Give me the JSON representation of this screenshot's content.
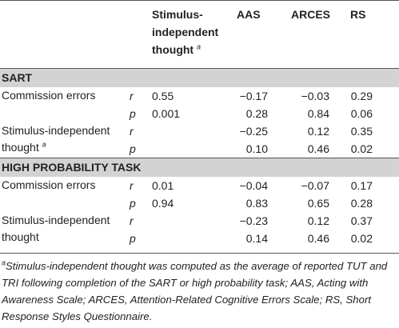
{
  "table": {
    "columns": [
      "Stimulus-independent thought",
      "AAS",
      "ARCES",
      "RS"
    ],
    "column_note": "a",
    "sections": [
      {
        "title": "SART",
        "groups": [
          {
            "label": "Commission errors",
            "lines": [
              {
                "stat": "r",
                "cells": [
                  "0.55",
                  "−0.17",
                  "−0.03",
                  "0.29"
                ]
              },
              {
                "stat": "p",
                "cells": [
                  "0.001",
                  "0.28",
                  "0.84",
                  "0.06"
                ]
              }
            ]
          },
          {
            "label": "Stimulus-independent thought",
            "label_note": "a",
            "lines": [
              {
                "stat": "r",
                "cells": [
                  null,
                  "−0.25",
                  "0.12",
                  "0.35"
                ]
              },
              {
                "stat": "p",
                "cells": [
                  null,
                  "0.10",
                  "0.46",
                  "0.02"
                ]
              }
            ]
          }
        ]
      },
      {
        "title": "HIGH PROBABILITY TASK",
        "groups": [
          {
            "label": "Commission errors",
            "lines": [
              {
                "stat": "r",
                "cells": [
                  "0.01",
                  "−0.04",
                  "−0.07",
                  "0.17"
                ]
              },
              {
                "stat": "p",
                "cells": [
                  "0.94",
                  "0.83",
                  "0.65",
                  "0.28"
                ]
              }
            ]
          },
          {
            "label": "Stimulus-independent thought",
            "lines": [
              {
                "stat": "r",
                "cells": [
                  null,
                  "−0.23",
                  "0.12",
                  "0.37"
                ]
              },
              {
                "stat": "p",
                "cells": [
                  null,
                  "0.14",
                  "0.46",
                  "0.02"
                ]
              }
            ]
          }
        ]
      }
    ]
  },
  "footnote": {
    "marker": "a",
    "text": "Stimulus-independent thought was computed as the average of reported TUT and TRI following completion of the SART or high probability task; AAS, Acting with Awareness Scale; ARCES, Attention-Related Cognitive Errors Scale; RS, Short Response Styles Questionnaire."
  }
}
